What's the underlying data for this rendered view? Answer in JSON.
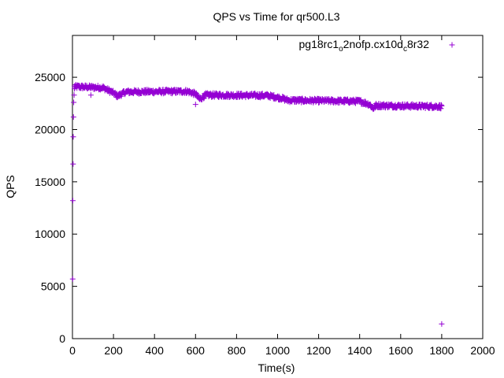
{
  "chart_data": {
    "type": "scatter",
    "title": "QPS vs Time for qr500.L3",
    "xlabel": "Time(s)",
    "ylabel": "QPS",
    "xlim": [
      0,
      2000
    ],
    "ylim": [
      0,
      29000
    ],
    "x_ticks": [
      0,
      200,
      400,
      600,
      800,
      1000,
      1200,
      1400,
      1600,
      1800,
      2000
    ],
    "y_ticks": [
      0,
      5000,
      10000,
      15000,
      20000,
      25000
    ],
    "x_tick_labels": [
      "0",
      "200",
      "400",
      "600",
      "800",
      "1000",
      "1200",
      "1400",
      "1600",
      "1800",
      "2000"
    ],
    "y_tick_labels": [
      "0",
      "5000",
      "10000",
      "15000",
      "20000",
      "25000"
    ],
    "grid": false,
    "legend_position": "top-right",
    "series": [
      {
        "name": "pg18rc1_o2nofp.cx10d_c8r32",
        "legend_parts": {
          "a": "pg18rc1",
          "sub1": "o",
          "b": "2nofp.cx10d",
          "sub2": "c",
          "c": "8r32"
        },
        "color": "#9400d3",
        "marker": "plus",
        "outliers": [
          {
            "x": 1,
            "y": 5700
          },
          {
            "x": 2,
            "y": 13200
          },
          {
            "x": 3,
            "y": 16700
          },
          {
            "x": 4,
            "y": 19300
          },
          {
            "x": 5,
            "y": 21200
          },
          {
            "x": 6,
            "y": 22600
          },
          {
            "x": 8,
            "y": 23300
          },
          {
            "x": 10,
            "y": 23900
          },
          {
            "x": 90,
            "y": 23300
          },
          {
            "x": 600,
            "y": 22400
          },
          {
            "x": 1800,
            "y": 1400
          }
        ],
        "trend": [
          {
            "x": 10,
            "y": 24100
          },
          {
            "x": 150,
            "y": 24000
          },
          {
            "x": 200,
            "y": 23500
          },
          {
            "x": 220,
            "y": 23200
          },
          {
            "x": 260,
            "y": 23600
          },
          {
            "x": 560,
            "y": 23650
          },
          {
            "x": 600,
            "y": 23400
          },
          {
            "x": 620,
            "y": 22900
          },
          {
            "x": 650,
            "y": 23300
          },
          {
            "x": 950,
            "y": 23250
          },
          {
            "x": 1020,
            "y": 23000
          },
          {
            "x": 1050,
            "y": 22800
          },
          {
            "x": 1400,
            "y": 22700
          },
          {
            "x": 1450,
            "y": 22400
          },
          {
            "x": 1465,
            "y": 22000
          },
          {
            "x": 1480,
            "y": 22300
          },
          {
            "x": 1800,
            "y": 22200
          }
        ],
        "x_start": 10,
        "x_end": 1800,
        "sample_step": 2,
        "band_halfwidth": 200
      }
    ]
  }
}
